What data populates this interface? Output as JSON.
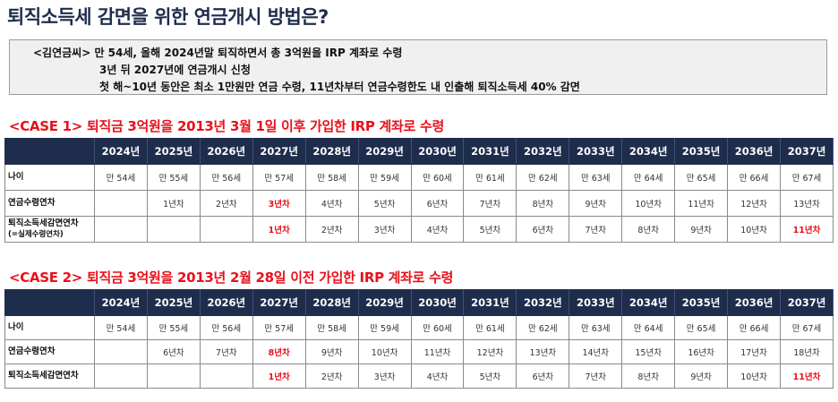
{
  "title": "퇴직소득세 감면을 위한 연금개시 방법은?",
  "scenario": {
    "line1": "<김연금씨> 만 54세, 올해 2024년말 퇴직하면서 총 3억원을 IRP 계좌로 수령",
    "line2": "3년 뒤 2027년에 연금개시 신청",
    "line3": "첫 해~10년 동안은 최소 1만원만 연금 수령, 11년차부터 연금수령한도 내 인출해 퇴직소득세 40% 감면"
  },
  "years": [
    "2024년",
    "2025년",
    "2026년",
    "2027년",
    "2028년",
    "2029년",
    "2030년",
    "2031년",
    "2032년",
    "2033년",
    "2034년",
    "2035년",
    "2036년",
    "2037년"
  ],
  "case1": {
    "title": "<CASE 1> 퇴직금 3억원을 2013년 3월 1일 이후 가입한 IRP 계좌로 수령",
    "rows": [
      {
        "label": "나이",
        "sublabel": "",
        "cells": [
          "만 54세",
          "만 55세",
          "만 56세",
          "만 57세",
          "만 58세",
          "만 59세",
          "만 60세",
          "만 61세",
          "만 62세",
          "만 63세",
          "만 64세",
          "만 65세",
          "만 66세",
          "만 67세"
        ],
        "highlight": []
      },
      {
        "label": "연금수령연차",
        "sublabel": "",
        "cells": [
          "",
          "1년차",
          "2년차",
          "3년차",
          "4년차",
          "5년차",
          "6년차",
          "7년차",
          "8년차",
          "9년차",
          "10년차",
          "11년차",
          "12년차",
          "13년차"
        ],
        "highlight": [
          3
        ]
      },
      {
        "label": "퇴직소득세감면연차",
        "sublabel": "(=실제수령연차)",
        "cells": [
          "",
          "",
          "",
          "1년차",
          "2년차",
          "3년차",
          "4년차",
          "5년차",
          "6년차",
          "7년차",
          "8년차",
          "9년차",
          "10년차",
          "11년차"
        ],
        "highlight": [
          3,
          13
        ]
      }
    ]
  },
  "case2": {
    "title": "<CASE 2> 퇴직금 3억원을 2013년 2월 28일 이전 가입한 IRP 계좌로 수령",
    "rows": [
      {
        "label": "나이",
        "sublabel": "",
        "cells": [
          "만 54세",
          "만 55세",
          "만 56세",
          "만 57세",
          "만 58세",
          "만 59세",
          "만 60세",
          "만 61세",
          "만 62세",
          "만 63세",
          "만 64세",
          "만 65세",
          "만 66세",
          "만 67세"
        ],
        "highlight": []
      },
      {
        "label": "연금수령연차",
        "sublabel": "",
        "cells": [
          "",
          "6년차",
          "7년차",
          "8년차",
          "9년차",
          "10년차",
          "11년차",
          "12년차",
          "13년차",
          "14년차",
          "15년차",
          "16년차",
          "17년차",
          "18년차"
        ],
        "highlight": [
          3
        ]
      },
      {
        "label": "퇴직소득세감면연차",
        "sublabel": "",
        "cells": [
          "",
          "",
          "",
          "1년차",
          "2년차",
          "3년차",
          "4년차",
          "5년차",
          "6년차",
          "7년차",
          "8년차",
          "9년차",
          "10년차",
          "11년차"
        ],
        "highlight": [
          3,
          13
        ]
      }
    ]
  },
  "colors": {
    "navy": "#1f2d4d",
    "red": "#e8101a",
    "box_bg": "#f0f0f0"
  }
}
